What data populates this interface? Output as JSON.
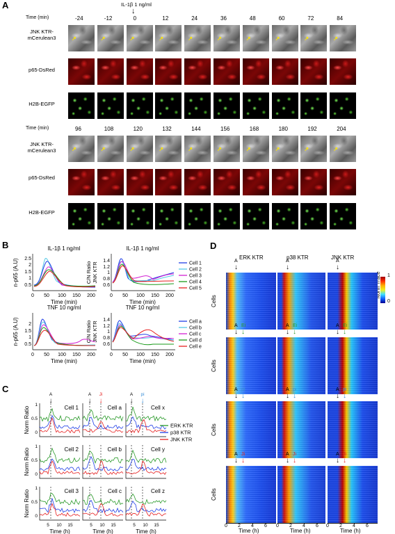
{
  "panels": {
    "A": "A",
    "B": "B",
    "C": "C",
    "D": "D"
  },
  "panel_a": {
    "stimulus": "IL-1β 1 ng/ml",
    "time_label": "Time (min)",
    "times_row1": [
      "-24",
      "-12",
      "0",
      "12",
      "24",
      "36",
      "48",
      "60",
      "72",
      "84"
    ],
    "times_row2": [
      "96",
      "108",
      "120",
      "132",
      "144",
      "156",
      "168",
      "180",
      "192",
      "204"
    ],
    "channels": [
      "JNK KTR-\nmCerulean3",
      "p65-DsRed",
      "H2B-EGFP"
    ],
    "channel_line1": "JNK KTR-",
    "channel_line2": "mCerulean3",
    "channel_p65": "p65-DsRed",
    "channel_h2b": "H2B-EGFP"
  },
  "panel_b": {
    "plots": [
      {
        "title": "IL-1β 1 ng/ml",
        "ylabel": "n-p65 (A.U)"
      },
      {
        "title": "IL-1β 1 ng/ml",
        "ylabel": "C/N Ratio JNK KTR"
      },
      {
        "title": "TNF 10 ng/ml",
        "ylabel": "n-p65 (A.U)"
      },
      {
        "title": "TNF 10 ng/ml",
        "ylabel": "C/N Ratio JNK KTR"
      }
    ],
    "xlabel": "Time (min)",
    "legend_top": [
      {
        "name": "Cell 1",
        "color": "#1f3ee6"
      },
      {
        "name": "Cell 2",
        "color": "#55c8e6"
      },
      {
        "name": "Cell 3",
        "color": "#d21fd2"
      },
      {
        "name": "Cell 4",
        "color": "#1a9a1a"
      },
      {
        "name": "Cell 5",
        "color": "#e61f1f"
      }
    ],
    "legend_bottom": [
      {
        "name": "Cell a",
        "color": "#1f3ee6"
      },
      {
        "name": "Cell b",
        "color": "#55c8e6"
      },
      {
        "name": "Cell c",
        "color": "#d21fd2"
      },
      {
        "name": "Cell d",
        "color": "#1a9a1a"
      },
      {
        "name": "Cell e",
        "color": "#e61f1f"
      }
    ]
  },
  "panel_c": {
    "cells": [
      "Cell 1",
      "Cell a",
      "Cell x",
      "Cell 2",
      "Cell b",
      "Cell y",
      "Cell 3",
      "Cell c",
      "Cell z"
    ],
    "ylabel": "Norm Ratio",
    "xlabel": "Time (h)",
    "legend": [
      {
        "name": "ERK KTR",
        "color": "#2a9a2a"
      },
      {
        "name": "p38 KTR",
        "color": "#1f3ee6"
      },
      {
        "name": "JNK KTR",
        "color": "#e61f1f"
      }
    ],
    "marks": {
      "A": "A",
      "Ji": "Ji",
      "pi": "pi"
    }
  },
  "panel_d": {
    "columns": [
      "ERK KTR",
      "p38 KTR",
      "JNK KTR"
    ],
    "ylabel": "Cells",
    "xlabel": "Time (h)",
    "colorbar_title": "Norm Trace",
    "colorbar_max": "1",
    "colorbar_min": "0",
    "row_marks": [
      [
        "A"
      ],
      [
        "A",
        "Ei"
      ],
      [
        "A",
        "pi"
      ],
      [
        "A",
        "Ji"
      ]
    ],
    "xticks": [
      "0",
      "2",
      "4",
      "6"
    ]
  }
}
